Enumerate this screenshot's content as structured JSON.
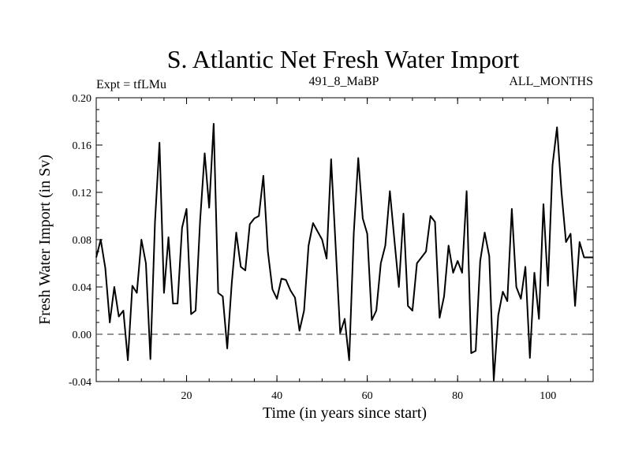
{
  "chart_data": {
    "type": "line",
    "title": "S. Atlantic Net Fresh Water Import",
    "subtitle_left": "Expt = tfLMu",
    "subtitle_center": "491_8_MaBP",
    "subtitle_right": "ALL_MONTHS",
    "xlabel": "Time (in years since start)",
    "ylabel": "Fresh Water Import (in Sv)",
    "xlim": [
      0,
      110
    ],
    "ylim": [
      -0.04,
      0.2
    ],
    "x_ticks": [
      20,
      40,
      60,
      80,
      100
    ],
    "x_tick_labels": [
      "20",
      "40",
      "60",
      "80",
      "100"
    ],
    "y_ticks": [
      -0.04,
      0.0,
      0.04,
      0.08,
      0.12,
      0.16,
      0.2
    ],
    "y_tick_labels": [
      "-0.04",
      "0.00",
      "0.04",
      "0.08",
      "0.12",
      "0.16",
      "0.20"
    ],
    "reference_line": {
      "y": 0.0,
      "style": "dashed"
    },
    "grid": false,
    "series": [
      {
        "name": "Net Fresh Water Import",
        "x": [
          0,
          1,
          2,
          3,
          4,
          5,
          6,
          7,
          8,
          9,
          10,
          11,
          12,
          13,
          14,
          15,
          16,
          17,
          18,
          19,
          20,
          21,
          22,
          23,
          24,
          25,
          26,
          27,
          28,
          29,
          30,
          31,
          32,
          33,
          34,
          35,
          36,
          37,
          38,
          39,
          40,
          41,
          42,
          43,
          44,
          45,
          46,
          47,
          48,
          49,
          50,
          51,
          52,
          53,
          54,
          55,
          56,
          57,
          58,
          59,
          60,
          61,
          62,
          63,
          64,
          65,
          66,
          67,
          68,
          69,
          70,
          71,
          72,
          73,
          74,
          75,
          76,
          77,
          78,
          79,
          80,
          81,
          82,
          83,
          84,
          85,
          86,
          87,
          88,
          89,
          90,
          91,
          92,
          93,
          94,
          95,
          96,
          97,
          98,
          99,
          100,
          101,
          102,
          103,
          104,
          105,
          106,
          107,
          108,
          109,
          110
        ],
        "values": [
          0.065,
          0.08,
          0.056,
          0.01,
          0.04,
          0.015,
          0.02,
          -0.022,
          0.041,
          0.035,
          0.08,
          0.06,
          -0.021,
          0.095,
          0.162,
          0.035,
          0.082,
          0.026,
          0.026,
          0.09,
          0.106,
          0.017,
          0.02,
          0.096,
          0.153,
          0.107,
          0.178,
          0.035,
          0.032,
          -0.012,
          0.043,
          0.086,
          0.057,
          0.054,
          0.093,
          0.098,
          0.1,
          0.134,
          0.07,
          0.038,
          0.03,
          0.047,
          0.046,
          0.037,
          0.031,
          0.003,
          0.02,
          0.075,
          0.094,
          0.087,
          0.08,
          0.064,
          0.148,
          0.075,
          0.001,
          0.013,
          -0.022,
          0.085,
          0.149,
          0.098,
          0.085,
          0.012,
          0.02,
          0.06,
          0.075,
          0.121,
          0.08,
          0.04,
          0.102,
          0.024,
          0.02,
          0.06,
          0.065,
          0.07,
          0.1,
          0.095,
          0.014,
          0.032,
          0.075,
          0.052,
          0.062,
          0.052,
          0.121,
          -0.016,
          -0.014,
          0.062,
          0.086,
          0.066,
          -0.039,
          0.016,
          0.036,
          0.028,
          0.106,
          0.04,
          0.03,
          0.057,
          -0.02,
          0.052,
          0.013,
          0.11,
          0.041,
          0.143,
          0.175,
          0.12,
          0.078,
          0.085,
          0.024,
          0.078,
          0.065,
          0.065,
          0.065
        ]
      }
    ]
  }
}
